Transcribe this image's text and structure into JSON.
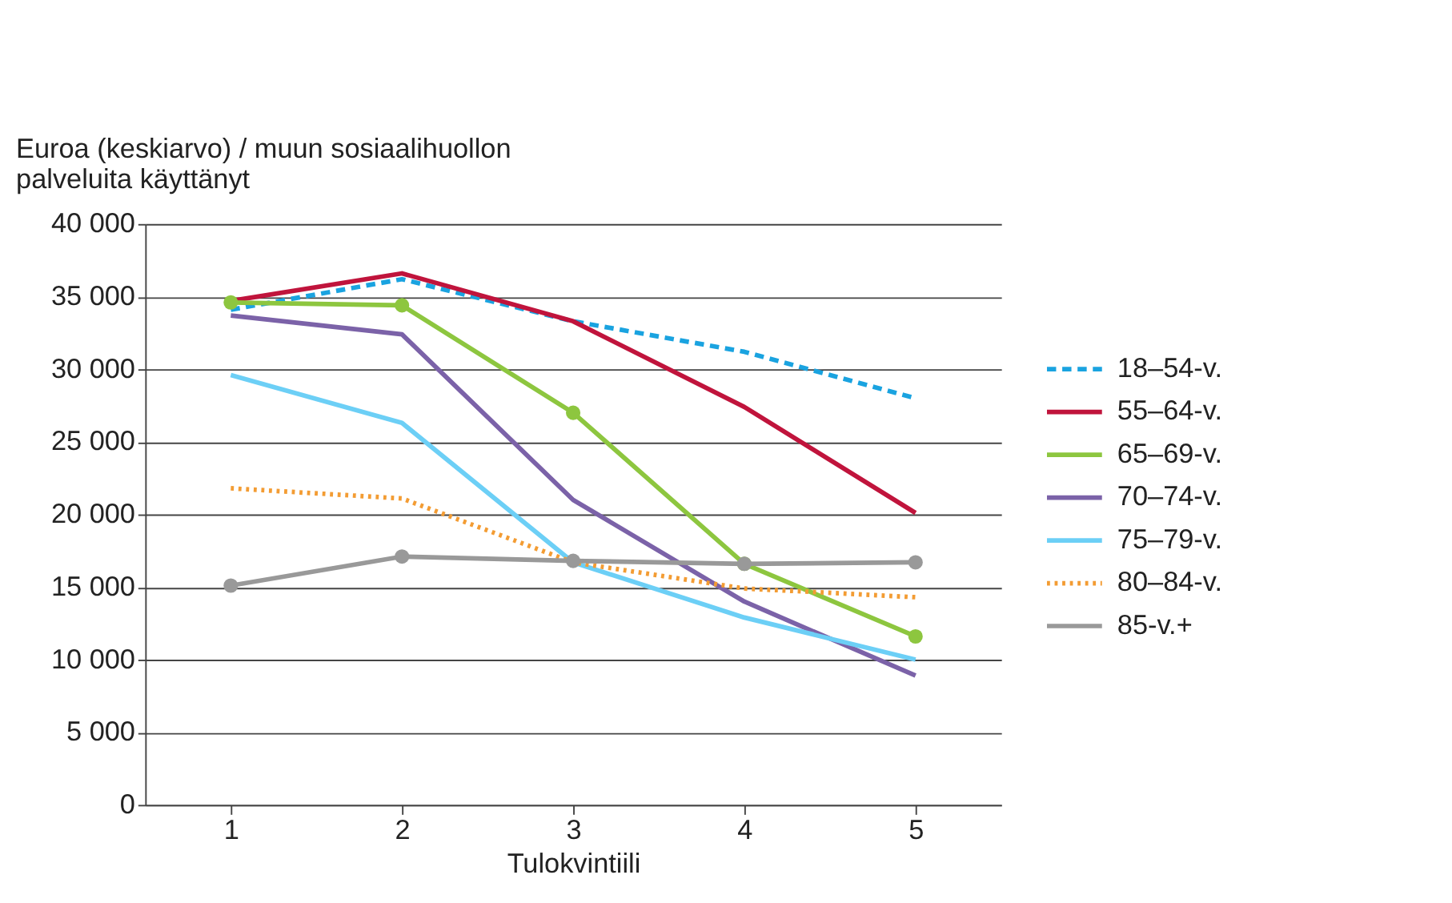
{
  "chart_data": {
    "type": "line",
    "ylabel": "Euroa (keskiarvo) / muun sosiaalihuollon\npalveluita käyttänyt",
    "xlabel": "Tulokvintiili",
    "categories": [
      "1",
      "2",
      "3",
      "4",
      "5"
    ],
    "ylim": [
      0,
      40000
    ],
    "yticks": [
      {
        "value": 0,
        "label": "0"
      },
      {
        "value": 5000,
        "label": "5 000"
      },
      {
        "value": 10000,
        "label": "10 000"
      },
      {
        "value": 15000,
        "label": "15 000"
      },
      {
        "value": 20000,
        "label": "20 000"
      },
      {
        "value": 25000,
        "label": "25 000"
      },
      {
        "value": 30000,
        "label": "30 000"
      },
      {
        "value": 35000,
        "label": "35 000"
      },
      {
        "value": 40000,
        "label": "40 000"
      }
    ],
    "grid": "y",
    "legend": "right",
    "series": [
      {
        "name": "18–54-v.",
        "color": "#1aa3e0",
        "line_style": "dashed",
        "marker": "none",
        "values": [
          34100,
          36200,
          33300,
          31200,
          28000
        ]
      },
      {
        "name": "55–64-v.",
        "color": "#c0143c",
        "line_style": "solid",
        "marker": "none",
        "values": [
          34700,
          36600,
          33300,
          27400,
          20100
        ]
      },
      {
        "name": "65–69-v.",
        "color": "#8dc63f",
        "line_style": "solid",
        "marker": "circle",
        "values": [
          34600,
          34400,
          27000,
          16600,
          11600
        ]
      },
      {
        "name": "70–74-v.",
        "color": "#7b62a8",
        "line_style": "solid",
        "marker": "none",
        "values": [
          33700,
          32400,
          21000,
          14000,
          8900
        ]
      },
      {
        "name": "75–79-v.",
        "color": "#6ccff6",
        "line_style": "solid",
        "marker": "none",
        "values": [
          29600,
          26300,
          16700,
          12900,
          10000
        ]
      },
      {
        "name": "80–84-v.",
        "color": "#f39c33",
        "line_style": "dotted",
        "marker": "none",
        "values": [
          21800,
          21100,
          16700,
          14900,
          14300
        ]
      },
      {
        "name": "85-v.+",
        "color": "#999999",
        "line_style": "solid",
        "marker": "circle",
        "values": [
          15100,
          17100,
          16800,
          16600,
          16700
        ]
      }
    ]
  }
}
